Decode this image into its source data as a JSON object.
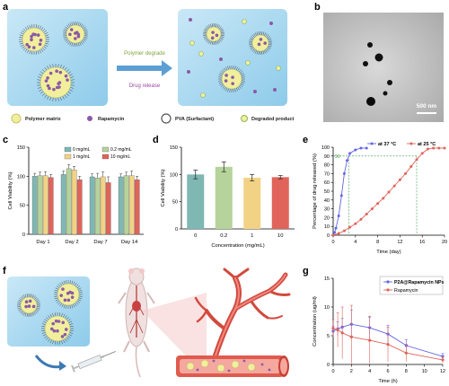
{
  "panels": {
    "a": {
      "letter": "a",
      "arrow_top": "Polymer degrade",
      "arrow_bottom": "Drug release",
      "legend": [
        "Polymer matrix",
        "Rapamycin",
        "PVA (Surfactant)",
        "Degraded product"
      ],
      "colors": {
        "bg": "#9fd3ee",
        "matrix": "#f2ef9c",
        "drug": "#8a5aa6",
        "arrow": "#5d9fd3",
        "top_text": "#7fa63a",
        "bottom_text": "#9a48a8"
      }
    },
    "b": {
      "letter": "b",
      "scalebar": "500 nm"
    },
    "c": {
      "letter": "c"
    },
    "d": {
      "letter": "d"
    },
    "e": {
      "letter": "e"
    },
    "f": {
      "letter": "f"
    },
    "g": {
      "letter": "g"
    }
  },
  "chart_data": [
    {
      "panel": "c",
      "type": "bar",
      "ylabel": "Cell Viability (%)",
      "ylim": [
        0,
        150
      ],
      "yticks": [
        0,
        50,
        100,
        150
      ],
      "categories": [
        "Day 1",
        "Day 2",
        "Day 7",
        "Day 14"
      ],
      "legend": "top-center",
      "series": [
        {
          "name": "0 mg/mL",
          "color": "#7fb7b3",
          "values": [
            100,
            103,
            99,
            99
          ],
          "errors": [
            5,
            6,
            5,
            5
          ]
        },
        {
          "name": "0.2 mg/mL",
          "color": "#b5d39a",
          "values": [
            101,
            113,
            97,
            101
          ],
          "errors": [
            6,
            7,
            8,
            6
          ]
        },
        {
          "name": "1 mg/mL",
          "color": "#f2d386",
          "values": [
            101,
            111,
            99,
            101
          ],
          "errors": [
            7,
            6,
            9,
            8
          ]
        },
        {
          "name": "10 mg/mL",
          "color": "#e0645a",
          "values": [
            98,
            94,
            89,
            94
          ],
          "errors": [
            5,
            6,
            10,
            6
          ]
        }
      ]
    },
    {
      "panel": "d",
      "type": "bar",
      "xlabel": "Concentration (mg/mL)",
      "ylabel": "Cell Viability (%)",
      "ylim": [
        0,
        150
      ],
      "yticks": [
        0,
        50,
        100,
        150
      ],
      "categories": [
        "0",
        "0.2",
        "1",
        "10"
      ],
      "colors": [
        "#7fb7b3",
        "#b5d39a",
        "#f2d386",
        "#e0645a"
      ],
      "values": [
        100,
        114,
        94,
        95
      ],
      "errors": [
        8,
        9,
        6,
        3
      ]
    },
    {
      "panel": "e",
      "type": "line",
      "xlabel": "Time (day)",
      "ylabel": "Percentage of drug released (%)",
      "xlim": [
        0,
        20
      ],
      "ylim": [
        0,
        100
      ],
      "xticks": [
        0,
        4,
        8,
        12,
        16,
        20
      ],
      "yticks": [
        0,
        10,
        20,
        30,
        40,
        50,
        60,
        70,
        80,
        90,
        100
      ],
      "ref_y": 90,
      "ref_y_label": "90",
      "ref_x": [
        2.8,
        15
      ],
      "legend": "top",
      "series": [
        {
          "name": "at 37 °C",
          "color": "#6464e6",
          "x": [
            0,
            0.25,
            0.5,
            1,
            1.5,
            2,
            2.5,
            3,
            4,
            5,
            6
          ],
          "y": [
            0,
            3,
            8,
            22,
            45,
            70,
            85,
            93,
            97,
            99,
            99
          ]
        },
        {
          "name": "at 25 °C",
          "color": "#e0645a",
          "x": [
            0,
            1,
            2,
            3,
            4,
            5,
            6,
            7,
            8,
            9,
            10,
            11,
            12,
            13,
            14,
            15,
            16,
            17,
            18,
            19,
            20
          ],
          "y": [
            0,
            2,
            5,
            9,
            13,
            18,
            24,
            30,
            36,
            42,
            49,
            56,
            63,
            70,
            78,
            86,
            93,
            98,
            99,
            99,
            99
          ]
        }
      ]
    },
    {
      "panel": "g",
      "type": "line",
      "xlabel": "Time (h)",
      "ylabel": "Concentration (ug/ml)",
      "xlim": [
        0,
        12
      ],
      "ylim": [
        0,
        15
      ],
      "xticks": [
        0,
        2,
        4,
        6,
        8,
        10,
        12
      ],
      "yticks": [
        0,
        5,
        10,
        15
      ],
      "legend": "top-right",
      "series": [
        {
          "name": "P2A@Rapamycin NPs",
          "color": "#6464e6",
          "x": [
            0,
            0.5,
            1,
            2,
            4,
            6,
            8,
            12
          ],
          "y": [
            5.8,
            6.2,
            6.5,
            7.0,
            6.4,
            5.3,
            3.3,
            1.4
          ],
          "errors": [
            0.8,
            1.2,
            1.5,
            2.5,
            2.0,
            1.5,
            1.0,
            0.5
          ]
        },
        {
          "name": "Rapamycin",
          "color": "#e0645a",
          "x": [
            0,
            0.5,
            1,
            2,
            4,
            6,
            8,
            12
          ],
          "y": [
            6.3,
            6.0,
            5.5,
            4.8,
            4.2,
            3.5,
            2.0,
            0.8
          ],
          "errors": [
            1.5,
            3.0,
            4.5,
            5.5,
            4.0,
            3.0,
            1.5,
            0.5
          ]
        }
      ]
    }
  ]
}
